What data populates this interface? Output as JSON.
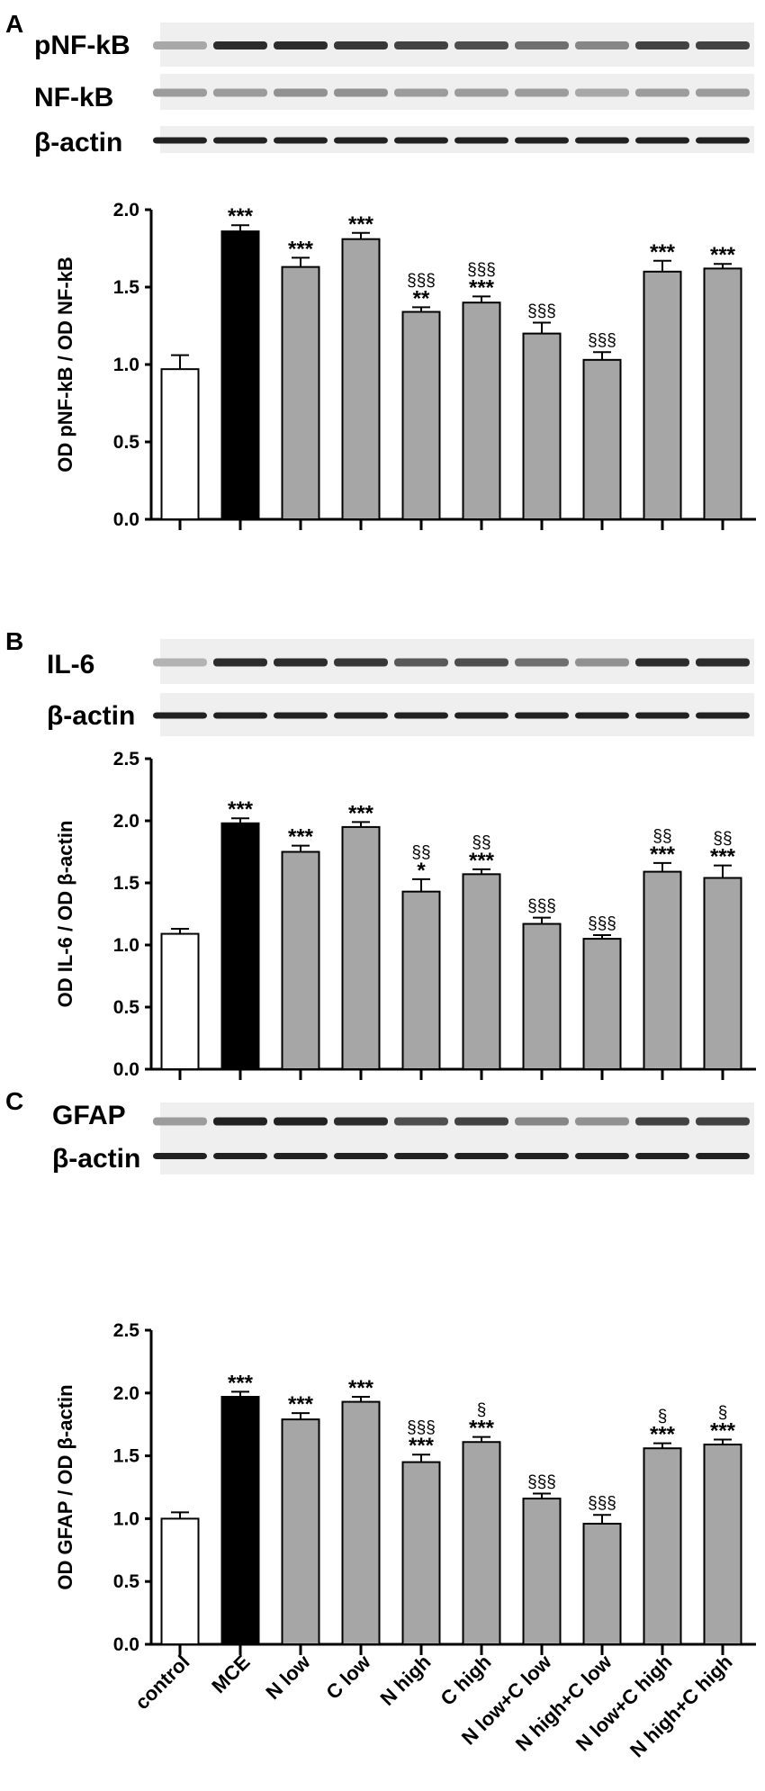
{
  "categories": [
    "control",
    "MCE",
    "N low",
    "C low",
    "N high",
    "C high",
    "N low+C low",
    "N high+C low",
    "N low+C high",
    "N high+C high"
  ],
  "bar_colors": [
    "#ffffff",
    "#000000",
    "#a6a6a6",
    "#a6a6a6",
    "#a6a6a6",
    "#a6a6a6",
    "#a6a6a6",
    "#a6a6a6",
    "#a6a6a6",
    "#a6a6a6"
  ],
  "panels": [
    {
      "letter": "A",
      "blot_labels": [
        "pNF-kB",
        "NF-kB",
        "β-actin"
      ],
      "blot_intensity": [
        [
          0.3,
          0.85,
          0.85,
          0.8,
          0.75,
          0.7,
          0.55,
          0.45,
          0.75,
          0.75
        ],
        [
          0.35,
          0.35,
          0.4,
          0.4,
          0.35,
          0.35,
          0.35,
          0.3,
          0.35,
          0.35
        ],
        [
          0.9,
          0.9,
          0.9,
          0.9,
          0.9,
          0.9,
          0.9,
          0.9,
          0.9,
          0.9
        ]
      ],
      "chart_data": {
        "type": "bar",
        "categories": [
          "control",
          "MCE",
          "N low",
          "C low",
          "N high",
          "C high",
          "N low+C low",
          "N high+C low",
          "N low+C high",
          "N high+C high"
        ],
        "values": [
          0.97,
          1.86,
          1.63,
          1.81,
          1.34,
          1.4,
          1.2,
          1.03,
          1.6,
          1.62
        ],
        "errors": [
          0.09,
          0.04,
          0.06,
          0.04,
          0.03,
          0.04,
          0.07,
          0.05,
          0.07,
          0.03
        ],
        "annotations": [
          [
            "",
            ""
          ],
          [
            "",
            "***"
          ],
          [
            "",
            "***"
          ],
          [
            "",
            "***"
          ],
          [
            "§§§",
            "**"
          ],
          [
            "§§§",
            "***"
          ],
          [
            "",
            "§§§"
          ],
          [
            "",
            "§§§"
          ],
          [
            "",
            "***"
          ],
          [
            "",
            "***"
          ]
        ],
        "ylabel": "OD pNF-kB / OD NF-kB",
        "ylim": [
          0,
          2.0
        ],
        "yticks": [
          "0.0",
          "0.5",
          "1.0",
          "1.5",
          "2.0"
        ]
      }
    },
    {
      "letter": "B",
      "blot_labels": [
        "IL-6",
        "β-actin"
      ],
      "blot_intensity": [
        [
          0.25,
          0.85,
          0.85,
          0.8,
          0.65,
          0.7,
          0.55,
          0.4,
          0.85,
          0.85
        ],
        [
          0.9,
          0.9,
          0.9,
          0.9,
          0.9,
          0.9,
          0.9,
          0.9,
          0.9,
          0.9
        ]
      ],
      "chart_data": {
        "type": "bar",
        "categories": [
          "control",
          "MCE",
          "N low",
          "C low",
          "N high",
          "C high",
          "N low+C low",
          "N high+C low",
          "N low+C high",
          "N high+C high"
        ],
        "values": [
          1.09,
          1.98,
          1.75,
          1.95,
          1.43,
          1.57,
          1.17,
          1.05,
          1.59,
          1.54
        ],
        "errors": [
          0.04,
          0.04,
          0.05,
          0.04,
          0.1,
          0.04,
          0.05,
          0.03,
          0.07,
          0.1
        ],
        "annotations": [
          [
            "",
            ""
          ],
          [
            "",
            "***"
          ],
          [
            "",
            "***"
          ],
          [
            "",
            "***"
          ],
          [
            "§§",
            "*"
          ],
          [
            "§§",
            "***"
          ],
          [
            "",
            "§§§"
          ],
          [
            "",
            "§§§"
          ],
          [
            "§§",
            "***"
          ],
          [
            "§§",
            "***"
          ]
        ],
        "ylabel": "OD IL-6 / OD β-actin",
        "ylim": [
          0,
          2.5
        ],
        "yticks": [
          "0.0",
          "0.5",
          "1.0",
          "1.5",
          "2.0",
          "2.5"
        ]
      }
    },
    {
      "letter": "C",
      "blot_labels": [
        "GFAP",
        "β-actin"
      ],
      "blot_intensity": [
        [
          0.35,
          0.9,
          0.9,
          0.85,
          0.7,
          0.75,
          0.45,
          0.4,
          0.75,
          0.75
        ],
        [
          0.9,
          0.9,
          0.9,
          0.9,
          0.9,
          0.9,
          0.9,
          0.9,
          0.9,
          0.9
        ]
      ],
      "chart_data": {
        "type": "bar",
        "categories": [
          "control",
          "MCE",
          "N low",
          "C low",
          "N high",
          "C high",
          "N low+C low",
          "N high+C low",
          "N low+C high",
          "N high+C high"
        ],
        "values": [
          1.0,
          1.97,
          1.79,
          1.93,
          1.45,
          1.61,
          1.16,
          0.96,
          1.56,
          1.59
        ],
        "errors": [
          0.05,
          0.04,
          0.05,
          0.04,
          0.06,
          0.04,
          0.04,
          0.07,
          0.04,
          0.04
        ],
        "annotations": [
          [
            "",
            ""
          ],
          [
            "",
            "***"
          ],
          [
            "",
            "***"
          ],
          [
            "",
            "***"
          ],
          [
            "§§§",
            "***"
          ],
          [
            "§",
            "***"
          ],
          [
            "",
            "§§§"
          ],
          [
            "",
            "§§§"
          ],
          [
            "§",
            "***"
          ],
          [
            "§",
            "***"
          ]
        ],
        "ylabel": "OD GFAP / OD β-actin",
        "ylim": [
          0,
          2.5
        ],
        "yticks": [
          "0.0",
          "0.5",
          "1.0",
          "1.5",
          "2.0",
          "2.5"
        ]
      }
    }
  ]
}
